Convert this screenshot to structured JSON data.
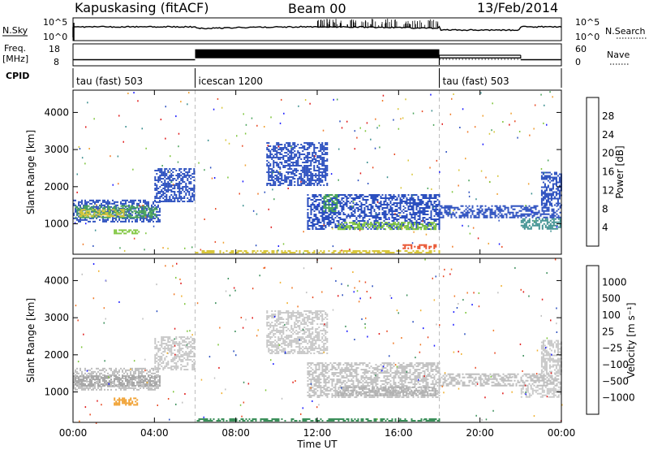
{
  "header": {
    "station": "Kapuskasing (fitACF)",
    "beam": "Beam 00",
    "date": "13/Feb/2014"
  },
  "summary_panels": {
    "nsky": {
      "label": "N.Sky",
      "left_ticks": [
        "10^5",
        "10^0"
      ],
      "right_ticks": [
        "10^5",
        "10^0"
      ],
      "right_label": "N.Search",
      "right_label_style": "dotted"
    },
    "freq": {
      "label_line1": "Freq.",
      "label_line2": "[MHz]",
      "left_ticks": [
        "18",
        "8"
      ],
      "right_ticks": [
        "60",
        "0"
      ],
      "right_label": "Nave",
      "right_label_style": "dotted",
      "levels": [
        {
          "t0": 0.0,
          "t1": 6.0,
          "freq": 10.5
        },
        {
          "t0": 6.0,
          "t1": 18.0,
          "freq": 14.5
        },
        {
          "t0": 18.0,
          "t1": 22.0,
          "freq": 11.5
        },
        {
          "t0": 22.0,
          "t1": 24.0,
          "freq": 10.5
        }
      ],
      "nave_levels": [
        {
          "t0": 18.0,
          "t1": 22.0,
          "nave": 30
        }
      ]
    },
    "cpid": {
      "label": "CPID",
      "segments": [
        {
          "t0": 0,
          "t1": 6,
          "name": "tau (fast) 503"
        },
        {
          "t0": 6,
          "t1": 18,
          "name": "icescan 1200"
        },
        {
          "t0": 18,
          "t1": 24,
          "name": "tau (fast) 503"
        }
      ]
    }
  },
  "chart_data": [
    {
      "type": "heatmap",
      "name": "power",
      "ylabel": "Slant Range [km]",
      "xlabel": "",
      "xlim": [
        0,
        24
      ],
      "ylim": [
        180,
        4600
      ],
      "yticks": [
        1000,
        2000,
        3000,
        4000
      ],
      "colorbar": {
        "label": "Power [dB]",
        "ticks": [
          "4",
          "8",
          "12",
          "16",
          "20",
          "24",
          "28"
        ],
        "colors": [
          "#1a1aff",
          "#2b4fbf",
          "#3b8f8f",
          "#4aa35a",
          "#7ec53c",
          "#d8c63a",
          "#f0a030",
          "#f07a28",
          "#e84a24",
          "#e01a1a"
        ]
      },
      "echo_regions": [
        {
          "t0": 0.0,
          "t1": 4.3,
          "r0": 1050,
          "r1": 1650,
          "color": "#2b4fbf"
        },
        {
          "t0": 0.1,
          "t1": 4.2,
          "r0": 1150,
          "r1": 1500,
          "color": "#4aa35a"
        },
        {
          "t0": 0.3,
          "t1": 2.5,
          "r0": 1200,
          "r1": 1400,
          "color": "#d8c63a"
        },
        {
          "t0": 2.0,
          "t1": 3.3,
          "r0": 700,
          "r1": 850,
          "color": "#7ec53c"
        },
        {
          "t0": 4.0,
          "t1": 6.0,
          "r0": 1600,
          "r1": 2500,
          "color": "#2b4fbf"
        },
        {
          "t0": 9.5,
          "t1": 12.5,
          "r0": 2000,
          "r1": 3200,
          "color": "#2b4fbf"
        },
        {
          "t0": 11.5,
          "t1": 18.0,
          "r0": 850,
          "r1": 1800,
          "color": "#2b4fbf"
        },
        {
          "t0": 12.3,
          "t1": 13.0,
          "r0": 1300,
          "r1": 1800,
          "color": "#4aa35a"
        },
        {
          "t0": 13.0,
          "t1": 17.9,
          "r0": 850,
          "r1": 1050,
          "color": "#7ec53c"
        },
        {
          "t0": 16.2,
          "t1": 17.9,
          "r0": 300,
          "r1": 450,
          "color": "#e84a24"
        },
        {
          "t0": 18.0,
          "t1": 24.0,
          "r0": 1150,
          "r1": 1500,
          "color": "#2b4fbf"
        },
        {
          "t0": 22.0,
          "t1": 24.0,
          "r0": 850,
          "r1": 1150,
          "color": "#3b8f8f"
        },
        {
          "t0": 23.0,
          "t1": 24.0,
          "r0": 1500,
          "r1": 2400,
          "color": "#2b4fbf"
        },
        {
          "t0": 6.0,
          "t1": 18.0,
          "r0": 190,
          "r1": 290,
          "color": "#d8c63a"
        }
      ]
    },
    {
      "type": "heatmap",
      "name": "velocity",
      "ylabel": "Slant Range [km]",
      "xlabel": "Time UT",
      "xlim": [
        0,
        24
      ],
      "ylim": [
        180,
        4600
      ],
      "xticks": [
        "00:00",
        "04:00",
        "08:00",
        "12:00",
        "16:00",
        "20:00",
        "00:00"
      ],
      "yticks": [
        1000,
        2000,
        3000,
        4000
      ],
      "colorbar": {
        "label": "Velocity [m s⁻¹]",
        "ticks": [
          "1000",
          "500",
          "100",
          "25",
          "−25",
          "−100",
          "−500",
          "−1000"
        ],
        "colors": [
          "#1a1aff",
          "#2b4fbf",
          "#3b8f5a",
          "#7ec53c",
          "#c0c0c0",
          "#f0b030",
          "#f07a28",
          "#e84a24",
          "#e01a1a"
        ]
      },
      "echo_regions": [
        {
          "t0": 0.0,
          "t1": 4.3,
          "r0": 1050,
          "r1": 1650,
          "color": "#bdbdbd"
        },
        {
          "t0": 0.0,
          "t1": 4.3,
          "r0": 1150,
          "r1": 1450,
          "color": "#a8a8a8"
        },
        {
          "t0": 2.0,
          "t1": 3.3,
          "r0": 650,
          "r1": 850,
          "color": "#f0a030"
        },
        {
          "t0": 4.0,
          "t1": 6.0,
          "r0": 1600,
          "r1": 2500,
          "color": "#c8c8c8"
        },
        {
          "t0": 9.5,
          "t1": 12.5,
          "r0": 2000,
          "r1": 3200,
          "color": "#c8c8c8"
        },
        {
          "t0": 11.5,
          "t1": 18.0,
          "r0": 850,
          "r1": 1800,
          "color": "#c4c4c4"
        },
        {
          "t0": 13.0,
          "t1": 17.9,
          "r0": 900,
          "r1": 1150,
          "color": "#b0b0b0"
        },
        {
          "t0": 18.0,
          "t1": 24.0,
          "r0": 1150,
          "r1": 1500,
          "color": "#bdbdbd"
        },
        {
          "t0": 22.0,
          "t1": 24.0,
          "r0": 850,
          "r1": 1150,
          "color": "#c8c8c8"
        },
        {
          "t0": 23.0,
          "t1": 24.0,
          "r0": 1500,
          "r1": 2400,
          "color": "#c8c8c8"
        },
        {
          "t0": 6.0,
          "t1": 18.0,
          "r0": 190,
          "r1": 290,
          "color": "#3b8f5a"
        }
      ]
    }
  ],
  "time_axis": {
    "label": "Time UT",
    "ticks": [
      "00:00",
      "04:00",
      "08:00",
      "12:00",
      "16:00",
      "20:00",
      "00:00"
    ],
    "tick_hours": [
      0,
      4,
      8,
      12,
      16,
      20,
      24
    ],
    "mode_change_hours": [
      6,
      18
    ]
  }
}
